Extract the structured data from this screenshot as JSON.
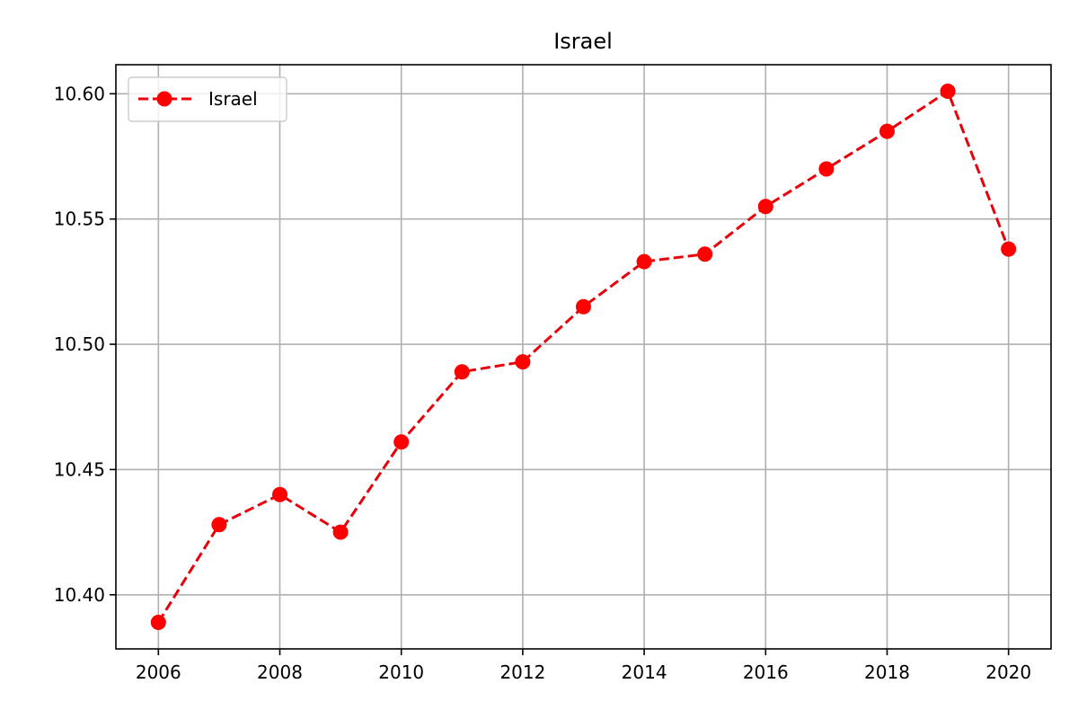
{
  "chart_data": {
    "type": "line",
    "title": "Israel",
    "xlabel": "",
    "ylabel": "",
    "x": [
      2006,
      2007,
      2008,
      2009,
      2010,
      2011,
      2012,
      2013,
      2014,
      2015,
      2016,
      2017,
      2018,
      2019,
      2020
    ],
    "series": [
      {
        "name": "Israel",
        "values": [
          10.389,
          10.428,
          10.44,
          10.425,
          10.461,
          10.489,
          10.493,
          10.515,
          10.533,
          10.536,
          10.555,
          10.57,
          10.585,
          10.601,
          10.538
        ],
        "color": "#ff0000",
        "line_color": "#e8000b",
        "line_style": "dashed",
        "marker": "circle"
      }
    ],
    "xlim": [
      2005.3,
      2020.7
    ],
    "ylim": [
      10.3784,
      10.6116
    ],
    "x_ticks": [
      2006,
      2008,
      2010,
      2012,
      2014,
      2016,
      2018,
      2020
    ],
    "x_tick_labels": [
      "2006",
      "2008",
      "2010",
      "2012",
      "2014",
      "2016",
      "2018",
      "2020"
    ],
    "y_ticks": [
      10.4,
      10.45,
      10.5,
      10.55,
      10.6
    ],
    "y_tick_labels": [
      "10.40",
      "10.45",
      "10.50",
      "10.55",
      "10.60"
    ],
    "grid": true,
    "legend_position": "top-left"
  }
}
